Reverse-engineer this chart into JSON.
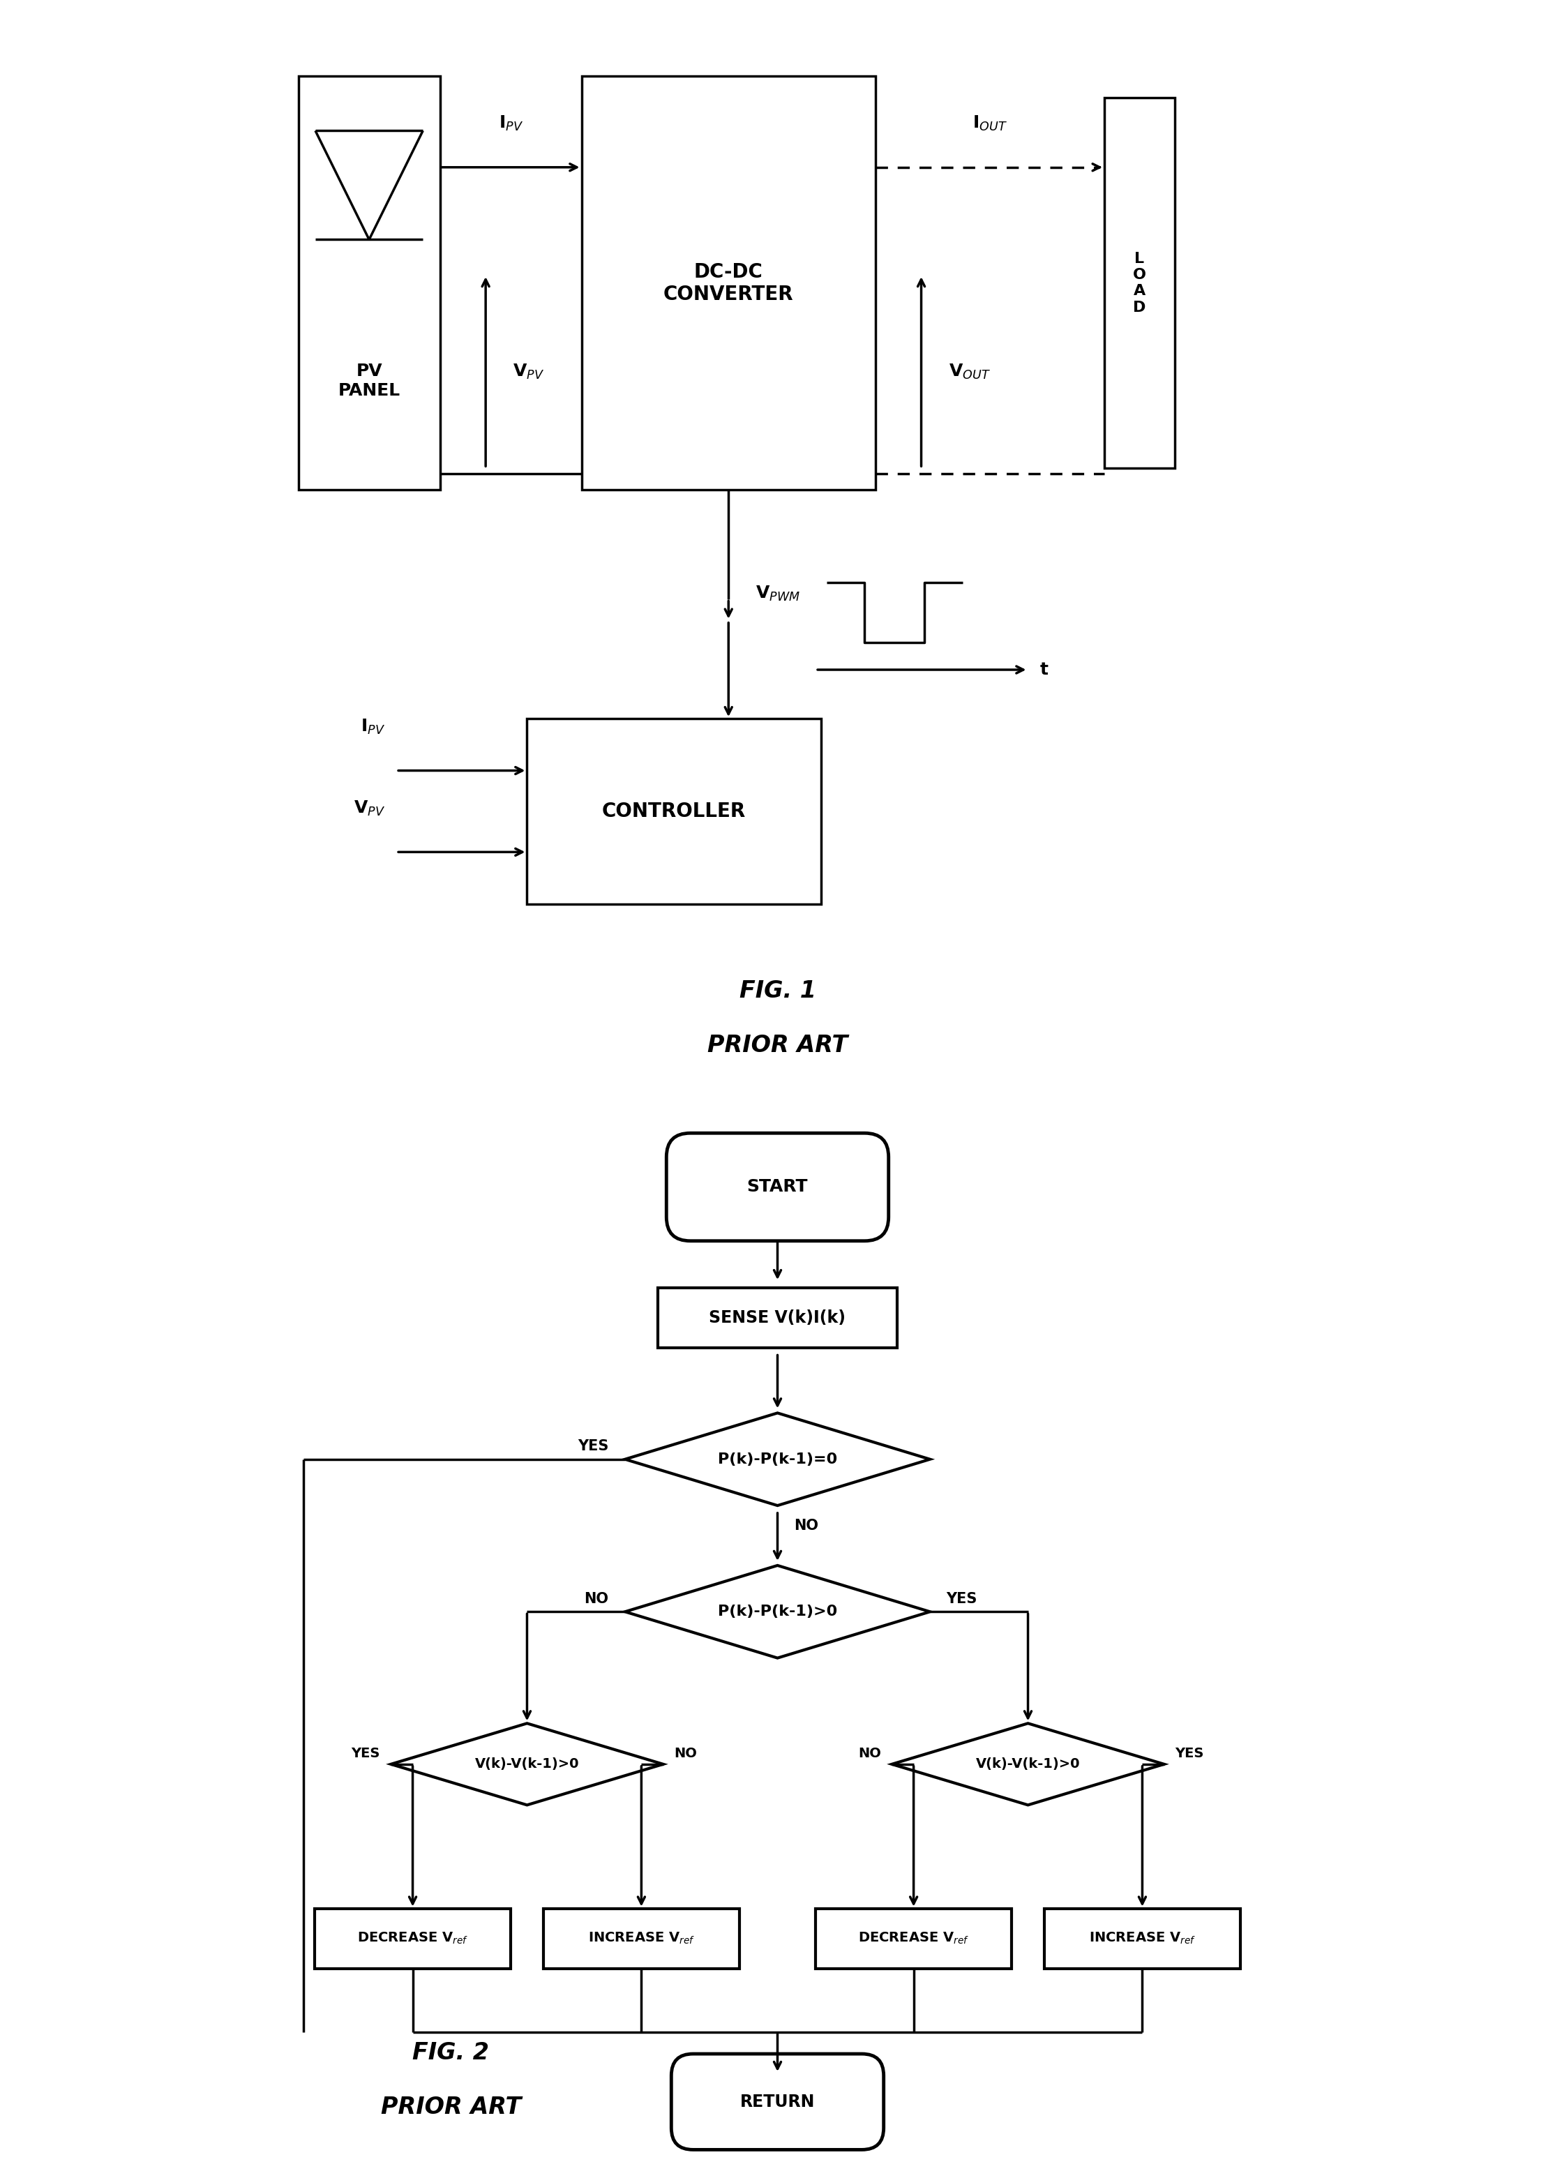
{
  "fig_width": 22.29,
  "fig_height": 31.22,
  "bg_color": "#ffffff",
  "lc": "#000000",
  "lw": 2.5,
  "fig1": {
    "title": "FIG. 1",
    "subtitle": "PRIOR ART",
    "pv_label": "PV\nPANEL",
    "dc_label": "DC-DC\nCONVERTER",
    "load_label": "L\nO\nA\nD",
    "ctrl_label": "CONTROLLER",
    "ipv": "I$_{PV}$",
    "iout": "I$_{OUT}$",
    "vpv": "V$_{PV}$",
    "vout": "V$_{OUT}$",
    "vpwm": "V$_{PWM}$",
    "t": "t"
  },
  "fig2": {
    "title": "FIG. 2",
    "subtitle": "PRIOR ART",
    "start": "START",
    "sense": "SENSE V(k)I(k)",
    "d1": "P(k)-P(k-1)=0",
    "d2": "P(k)-P(k-1)>0",
    "d3": "V(k)-V(k-1)>0",
    "d4": "V(k)-V(k-1)>0",
    "dec1": "DECREASE V$_{ref}$",
    "inc1": "INCREASE V$_{ref}$",
    "dec2": "DECREASE V$_{ref}$",
    "inc2": "INCREASE V$_{ref}$",
    "ret": "RETURN",
    "yes": "YES",
    "no": "NO"
  }
}
